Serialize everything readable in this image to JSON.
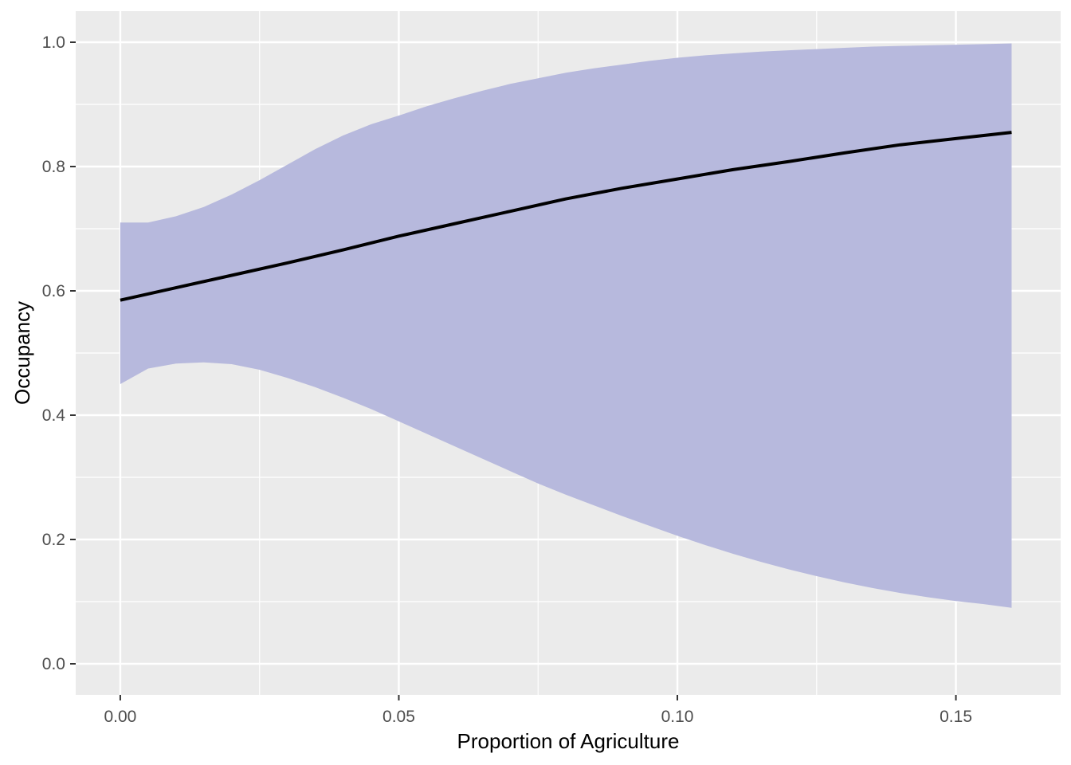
{
  "chart_data": {
    "type": "line",
    "title": "",
    "xlabel": "Proportion of Agriculture",
    "ylabel": "Occupancy",
    "xlim": [
      -0.008,
      0.1688
    ],
    "ylim": [
      -0.05,
      1.05
    ],
    "x_ticks": [
      0.0,
      0.05,
      0.1,
      0.15
    ],
    "x_tick_labels": [
      "0.00",
      "0.05",
      "0.10",
      "0.15"
    ],
    "y_ticks": [
      0.0,
      0.2,
      0.4,
      0.6,
      0.8,
      1.0
    ],
    "y_tick_labels": [
      "0.0",
      "0.2",
      "0.4",
      "0.6",
      "0.8",
      "1.0"
    ],
    "grid": true,
    "legend": "none",
    "colors": {
      "panel_background": "#ebebeb",
      "grid_line": "#ffffff",
      "ribbon_fill": "#b7b9dd",
      "line": "#000000"
    },
    "series": [
      {
        "kind": "ribbon",
        "x": [
          0.0,
          0.005,
          0.01,
          0.015,
          0.02,
          0.025,
          0.03,
          0.035,
          0.04,
          0.045,
          0.05,
          0.055,
          0.06,
          0.065,
          0.07,
          0.075,
          0.08,
          0.085,
          0.09,
          0.095,
          0.1,
          0.105,
          0.11,
          0.115,
          0.12,
          0.125,
          0.13,
          0.135,
          0.14,
          0.145,
          0.15,
          0.155,
          0.16
        ],
        "lower": [
          0.45,
          0.475,
          0.483,
          0.485,
          0.482,
          0.473,
          0.46,
          0.445,
          0.428,
          0.41,
          0.39,
          0.37,
          0.35,
          0.33,
          0.31,
          0.29,
          0.272,
          0.255,
          0.238,
          0.222,
          0.206,
          0.191,
          0.177,
          0.164,
          0.152,
          0.141,
          0.131,
          0.122,
          0.114,
          0.107,
          0.101,
          0.096,
          0.09
        ],
        "upper": [
          0.71,
          0.71,
          0.72,
          0.735,
          0.755,
          0.778,
          0.803,
          0.828,
          0.85,
          0.868,
          0.882,
          0.897,
          0.91,
          0.922,
          0.933,
          0.942,
          0.951,
          0.958,
          0.964,
          0.97,
          0.975,
          0.979,
          0.982,
          0.985,
          0.987,
          0.989,
          0.991,
          0.993,
          0.994,
          0.995,
          0.996,
          0.997,
          0.998
        ]
      },
      {
        "kind": "line",
        "x": [
          0.0,
          0.01,
          0.02,
          0.03,
          0.04,
          0.05,
          0.06,
          0.07,
          0.08,
          0.09,
          0.1,
          0.11,
          0.12,
          0.13,
          0.14,
          0.15,
          0.16
        ],
        "y": [
          0.585,
          0.605,
          0.625,
          0.645,
          0.666,
          0.688,
          0.708,
          0.728,
          0.748,
          0.765,
          0.78,
          0.795,
          0.808,
          0.822,
          0.835,
          0.845,
          0.855
        ]
      }
    ]
  }
}
